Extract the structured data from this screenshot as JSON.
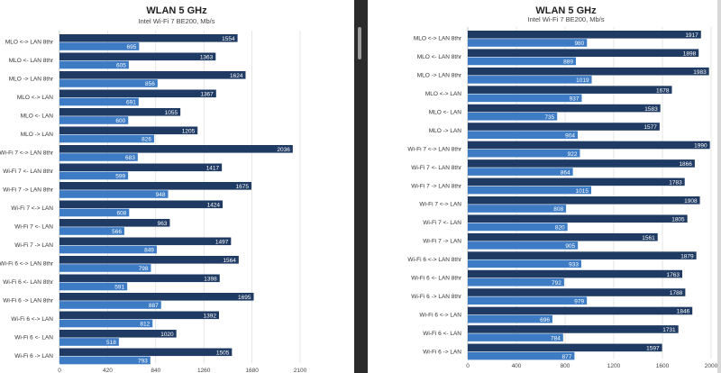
{
  "colors": {
    "series_dark": "#1f3a63",
    "series_light": "#3d7cc4",
    "grid": "#d6d6d6",
    "background": "#ffffff"
  },
  "chart_data": [
    {
      "type": "bar",
      "orientation": "horizontal",
      "title": "WLAN 5 GHz",
      "subtitle": "Intel Wi-Fi 7 BE200, Mb/s",
      "categories": [
        "MLO <-> LAN 8thr",
        "MLO <- LAN 8thr",
        "MLO -> LAN 8thr",
        "MLO <-> LAN",
        "MLO <- LAN",
        "MLO -> LAN",
        "Wi-Fi 7 <-> LAN 8thr",
        "Wi-Fi 7 <- LAN 8thr",
        "Wi-Fi 7 -> LAN 8thr",
        "Wi-Fi 7 <-> LAN",
        "Wi-Fi 7 <- LAN",
        "Wi-Fi 7 -> LAN",
        "Wi-Fi 6 <-> LAN 8thr",
        "Wi-Fi 6 <- LAN 8thr",
        "Wi-Fi 6 -> LAN 8thr",
        "Wi-Fi 6 <-> LAN",
        "Wi-Fi 6 <- LAN",
        "Wi-Fi 6 -> LAN"
      ],
      "series": [
        {
          "values": [
            1554,
            1363,
            1624,
            1367,
            1055,
            1205,
            2036,
            1417,
            1675,
            1424,
            963,
            1497,
            1564,
            1398,
            1695,
            1392,
            1020,
            1505
          ]
        },
        {
          "values": [
            695,
            605,
            856,
            691,
            600,
            826,
            683,
            599,
            948,
            608,
            566,
            849,
            798,
            591,
            887,
            812,
            518,
            793
          ]
        }
      ],
      "xlim": [
        0,
        2100
      ],
      "xticks": [
        0,
        420,
        840,
        1260,
        1680,
        2100
      ],
      "grid": true,
      "legend": "none"
    },
    {
      "type": "bar",
      "orientation": "horizontal",
      "title": "WLAN 5 GHz",
      "subtitle": "Intel Wi-Fi 7 BE200, Mb/s",
      "categories": [
        "MLO <-> LAN 8thr",
        "MLO <- LAN 8thr",
        "MLO -> LAN 8thr",
        "MLO <-> LAN",
        "MLO <- LAN",
        "MLO -> LAN",
        "Wi-Fi 7 <-> LAN 8thr",
        "Wi-Fi 7 <- LAN 8thr",
        "Wi-Fi 7 -> LAN 8thr",
        "Wi-Fi 7 <-> LAN",
        "Wi-Fi 7 <- LAN",
        "Wi-Fi 7 -> LAN",
        "Wi-Fi 6 <-> LAN 8thr",
        "Wi-Fi 6 <- LAN 8thr",
        "Wi-Fi 6 -> LAN 8thr",
        "Wi-Fi 6 <-> LAN",
        "Wi-Fi 6 <- LAN",
        "Wi-Fi 6 -> LAN"
      ],
      "series": [
        {
          "values": [
            1917,
            1898,
            1983,
            1678,
            1583,
            1577,
            1990,
            1866,
            1783,
            1908,
            1805,
            1561,
            1879,
            1763,
            1788,
            1846,
            1731,
            1597
          ]
        },
        {
          "values": [
            980,
            889,
            1019,
            937,
            735,
            904,
            922,
            864,
            1015,
            808,
            820,
            905,
            933,
            792,
            979,
            696,
            784,
            877
          ]
        }
      ],
      "xlim": [
        0,
        2000
      ],
      "xticks": [
        0,
        400,
        800,
        1200,
        1600,
        2000
      ],
      "grid": true,
      "legend": "none"
    }
  ]
}
